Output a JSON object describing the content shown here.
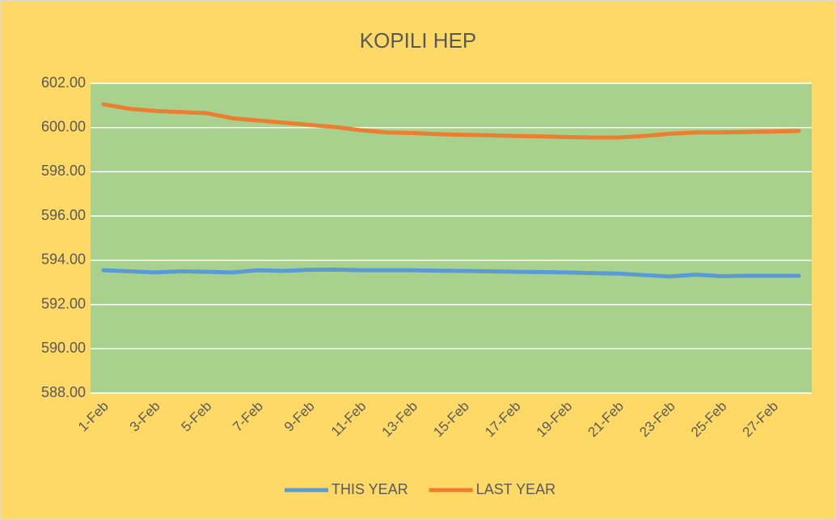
{
  "chart_data": {
    "type": "line",
    "title": "KOPILI HEP",
    "categories": [
      "1-Feb",
      null,
      "3-Feb",
      null,
      "5-Feb",
      null,
      "7-Feb",
      null,
      "9-Feb",
      null,
      "11-Feb",
      null,
      "13-Feb",
      null,
      "15-Feb",
      null,
      "17-Feb",
      null,
      "19-Feb",
      null,
      "21-Feb",
      null,
      "23-Feb",
      null,
      "25-Feb",
      null,
      "27-Feb",
      null
    ],
    "series": [
      {
        "name": "THIS YEAR",
        "color": "#5b9bd5",
        "values": [
          593.55,
          593.5,
          593.45,
          593.5,
          593.48,
          593.45,
          593.55,
          593.52,
          593.57,
          593.58,
          593.55,
          593.55,
          593.55,
          593.53,
          593.52,
          593.5,
          593.48,
          593.47,
          593.45,
          593.42,
          593.4,
          593.33,
          593.27,
          593.35,
          593.28,
          593.3,
          593.3,
          593.3
        ]
      },
      {
        "name": "LAST YEAR",
        "color": "#ed7d31",
        "values": [
          601.05,
          600.85,
          600.75,
          600.7,
          600.65,
          600.42,
          600.32,
          600.22,
          600.12,
          600.02,
          599.88,
          599.78,
          599.75,
          599.7,
          599.67,
          599.65,
          599.62,
          599.6,
          599.57,
          599.55,
          599.55,
          599.62,
          599.72,
          599.78,
          599.78,
          599.8,
          599.82,
          599.85
        ]
      }
    ],
    "ylim": [
      588,
      602
    ],
    "yticks": [
      {
        "value": 588,
        "label": "588.00"
      },
      {
        "value": 590,
        "label": "590.00"
      },
      {
        "value": 592,
        "label": "592.00"
      },
      {
        "value": 594,
        "label": "594.00"
      },
      {
        "value": 596,
        "label": "596.00"
      },
      {
        "value": 598,
        "label": "598.00"
      },
      {
        "value": 600,
        "label": "600.00"
      },
      {
        "value": 602,
        "label": "602.00"
      }
    ],
    "grid": true,
    "legend": "bottom",
    "background": "#ffd966",
    "plot_background": "#a9d18e"
  }
}
